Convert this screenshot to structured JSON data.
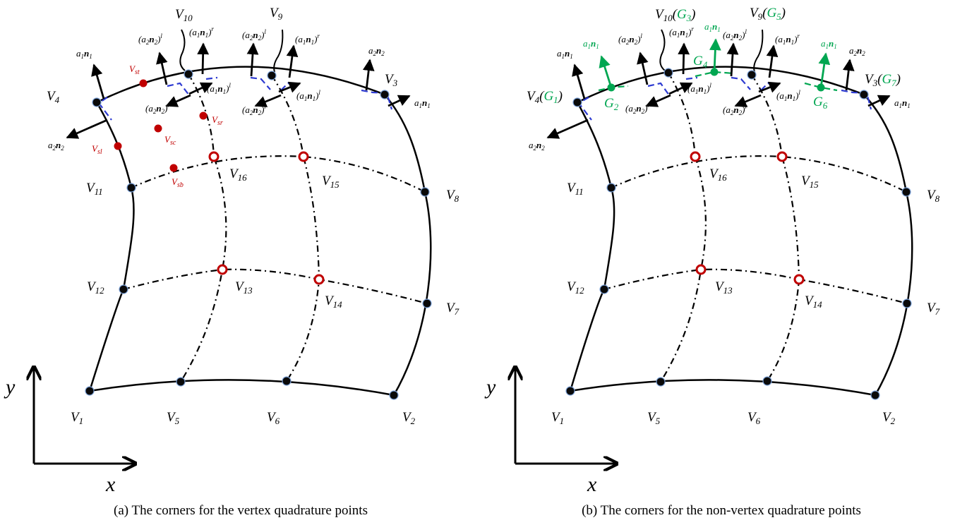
{
  "colors": {
    "edge": "#000000",
    "quad_corner": "#2e3bd1",
    "node_fill": "#0a0a0a",
    "node_ring": "#7aa0d8",
    "interior_node": "#c00000",
    "green": "#00a651"
  },
  "panels": [
    {
      "caption": "(a) The corners for the vertex quadrature points",
      "vertices": {
        "V1": {
          "label": "V",
          "sub": "1"
        },
        "V2": {
          "label": "V",
          "sub": "2"
        },
        "V3": {
          "label": "V",
          "sub": "3"
        },
        "V4": {
          "label": "V",
          "sub": "4"
        },
        "V5": {
          "label": "V",
          "sub": "5"
        },
        "V6": {
          "label": "V",
          "sub": "6"
        },
        "V7": {
          "label": "V",
          "sub": "7"
        },
        "V8": {
          "label": "V",
          "sub": "8"
        },
        "V9": {
          "label": "V",
          "sub": "9"
        },
        "V10": {
          "label": "V",
          "sub": "10"
        },
        "V11": {
          "label": "V",
          "sub": "11"
        },
        "V12": {
          "label": "V",
          "sub": "12"
        },
        "V13": {
          "label": "V",
          "sub": "13"
        },
        "V14": {
          "label": "V",
          "sub": "14"
        },
        "V15": {
          "label": "V",
          "sub": "15"
        },
        "V16": {
          "label": "V",
          "sub": "16"
        }
      },
      "red_points": {
        "Vst": {
          "label": "V",
          "sub": "st"
        },
        "Vsr": {
          "label": "V",
          "sub": "sr"
        },
        "Vsc": {
          "label": "V",
          "sub": "sc"
        },
        "Vsl": {
          "label": "V",
          "sub": "sl"
        },
        "Vsb": {
          "label": "V",
          "sub": "sb"
        }
      },
      "normals": {
        "a1n1": {
          "coef": "a",
          "csub": "1",
          "vec": "n",
          "vsub": "1",
          "sup": ""
        },
        "a2n2": {
          "coef": "a",
          "csub": "2",
          "vec": "n",
          "vsub": "2",
          "sup": ""
        },
        "a2n2l": {
          "coef": "a",
          "csub": "2",
          "vec": "n",
          "vsub": "2",
          "sup": "l"
        },
        "a1n1r": {
          "coef": "a",
          "csub": "1",
          "vec": "n",
          "vsub": "1",
          "sup": "r"
        },
        "a1n1l": {
          "coef": "a",
          "csub": "1",
          "vec": "n",
          "vsub": "1",
          "sup": "l"
        },
        "a2n2r": {
          "coef": "a",
          "csub": "2",
          "vec": "n",
          "vsub": "2",
          "sup": "r"
        }
      },
      "axes": {
        "x": "x",
        "y": "y"
      }
    },
    {
      "caption": "(b) The corners for the non-vertex quadrature points",
      "vertices": {
        "V1": {
          "label": "V",
          "sub": "1"
        },
        "V2": {
          "label": "V",
          "sub": "2"
        },
        "V3": {
          "label": "V",
          "sub": "3",
          "g": "G",
          "gsub": "7"
        },
        "V4": {
          "label": "V",
          "sub": "4",
          "g": "G",
          "gsub": "1"
        },
        "V5": {
          "label": "V",
          "sub": "5"
        },
        "V6": {
          "label": "V",
          "sub": "6"
        },
        "V7": {
          "label": "V",
          "sub": "7"
        },
        "V8": {
          "label": "V",
          "sub": "8"
        },
        "V9": {
          "label": "V",
          "sub": "9",
          "g": "G",
          "gsub": "5"
        },
        "V10": {
          "label": "V",
          "sub": "10",
          "g": "G",
          "gsub": "3"
        },
        "V11": {
          "label": "V",
          "sub": "11"
        },
        "V12": {
          "label": "V",
          "sub": "12"
        },
        "V13": {
          "label": "V",
          "sub": "13"
        },
        "V14": {
          "label": "V",
          "sub": "14"
        },
        "V15": {
          "label": "V",
          "sub": "15"
        },
        "V16": {
          "label": "V",
          "sub": "16"
        }
      },
      "green_points": {
        "G2": {
          "label": "G",
          "sub": "2"
        },
        "G4": {
          "label": "G",
          "sub": "4"
        },
        "G6": {
          "label": "G",
          "sub": "6"
        }
      },
      "axes": {
        "x": "x",
        "y": "y"
      }
    }
  ]
}
